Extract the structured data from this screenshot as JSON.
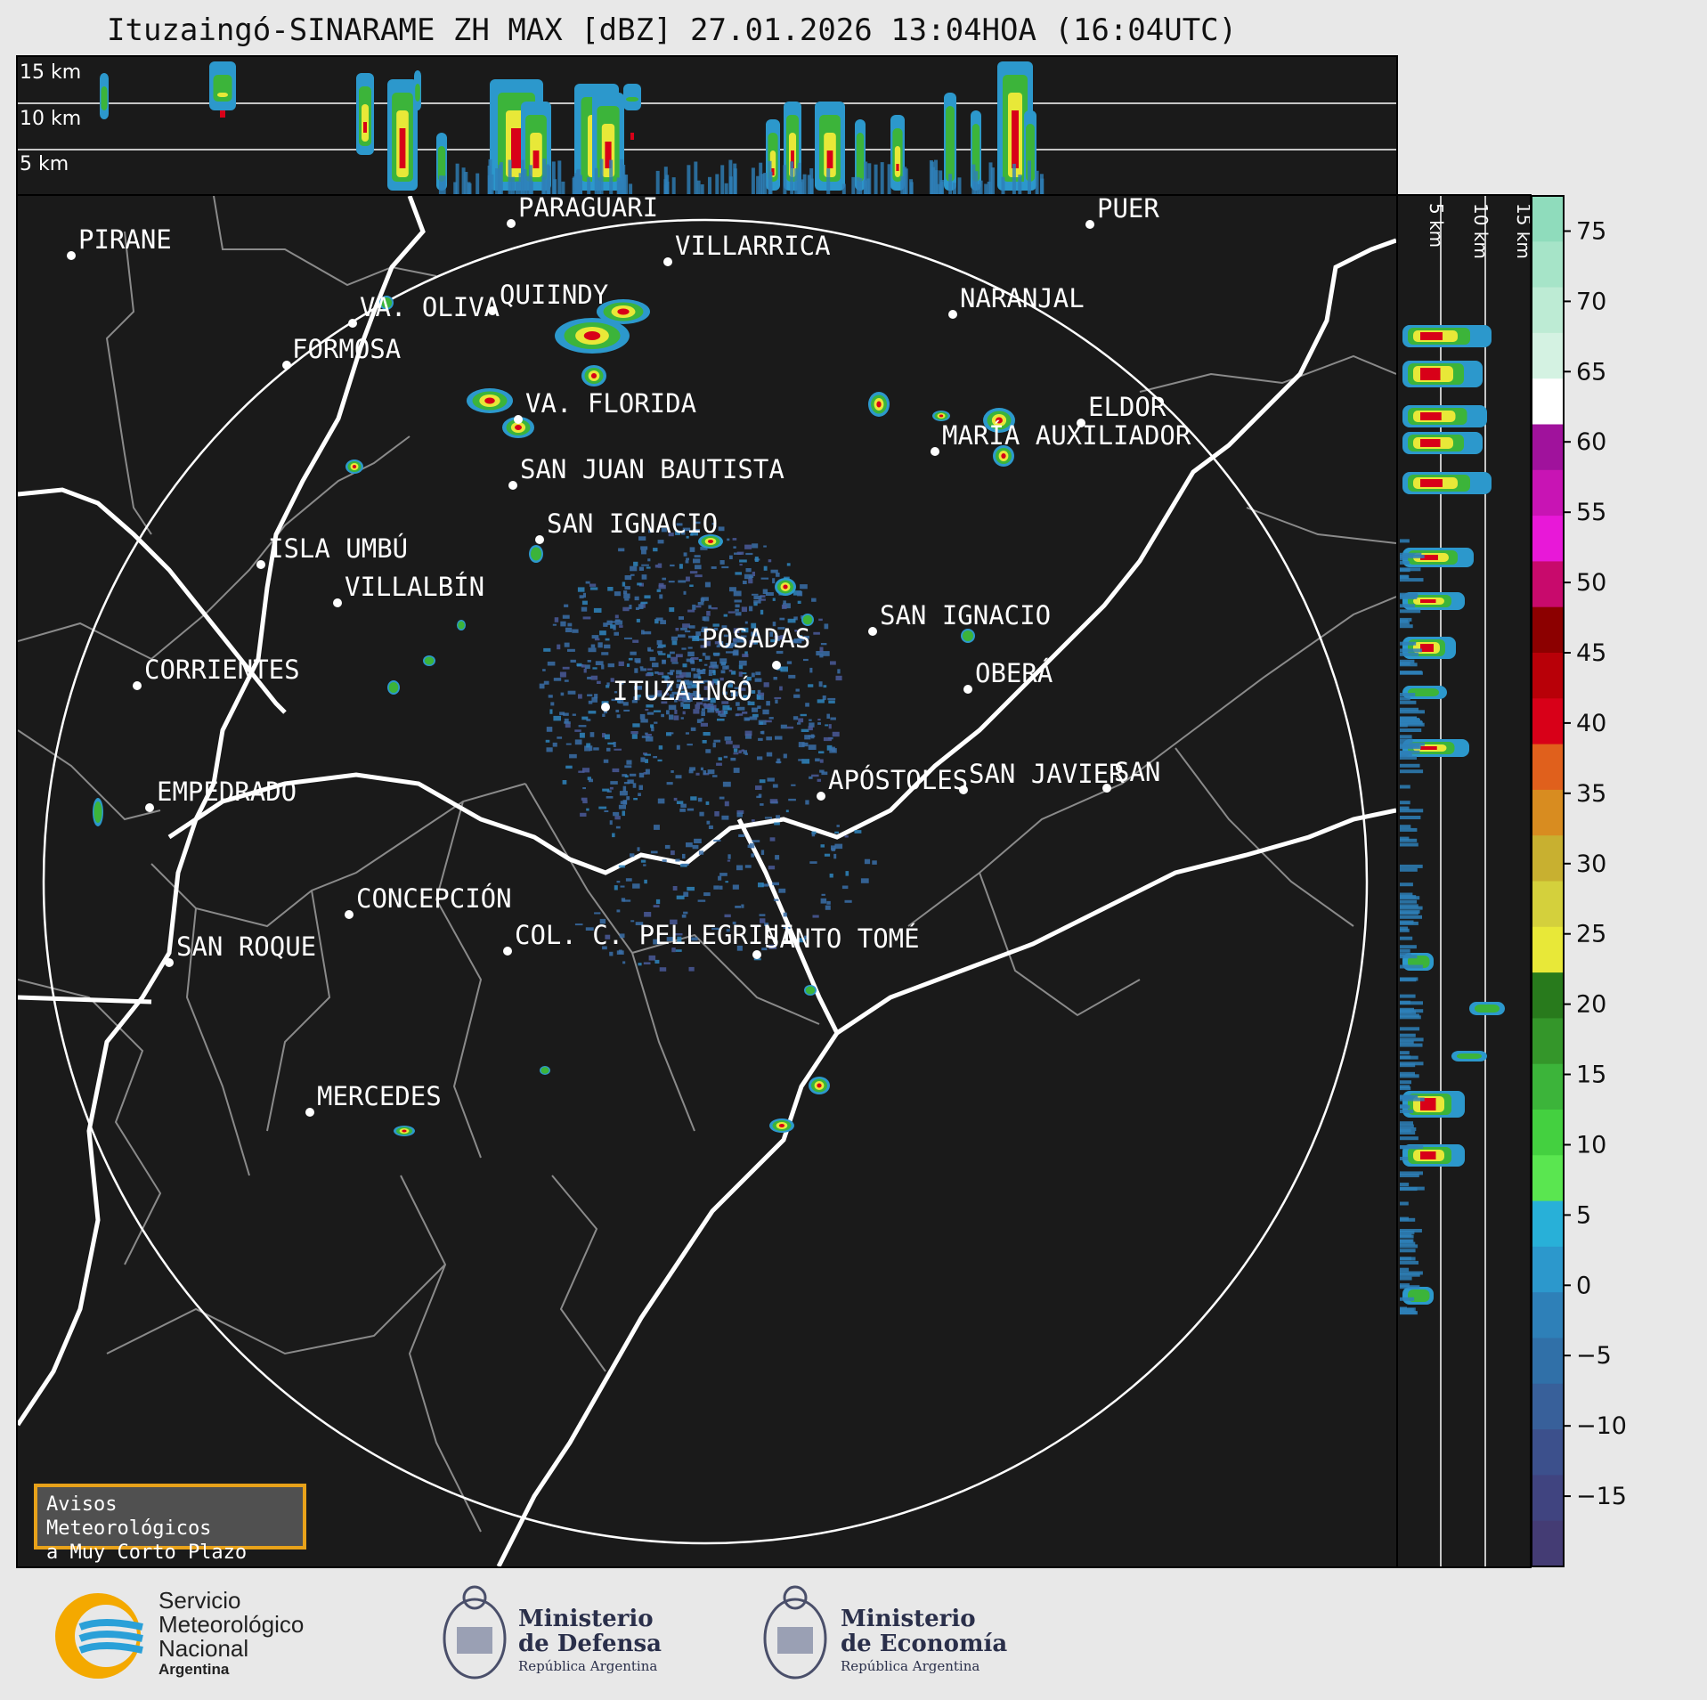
{
  "title": "Ituzaingó-SINARAME ZH MAX [dBZ] 27.01.2026 13:04HOA (16:04UTC)",
  "height_labels": [
    "15 km",
    "10 km",
    "5 km"
  ],
  "cities": [
    {
      "name": "PIRANE"
    },
    {
      "name": "PARAGUARÍ"
    },
    {
      "name": "VILLARRICA"
    },
    {
      "name": "VA. OLIVA"
    },
    {
      "name": "QUIINDY"
    },
    {
      "name": "NARANJAL"
    },
    {
      "name": "FORMOSA"
    },
    {
      "name": "VA. FLORIDA"
    },
    {
      "name": "ELDOR"
    },
    {
      "name": "MARÍA AUXILIADOR"
    },
    {
      "name": "SAN JUAN BAUTISTA"
    },
    {
      "name": "SAN IGNACIO"
    },
    {
      "name": "ISLA UMBÚ"
    },
    {
      "name": "VILLALBÍN"
    },
    {
      "name": "SAN IGNACIO"
    },
    {
      "name": "POSADAS"
    },
    {
      "name": "CORRIENTES"
    },
    {
      "name": "ITUZAINGÓ"
    },
    {
      "name": "OBERÁ"
    },
    {
      "name": "EMPEDRADO"
    },
    {
      "name": "APÓSTOLES"
    },
    {
      "name": "SAN JAVIER"
    },
    {
      "name": "SAN"
    },
    {
      "name": "CONCEPCIÓN"
    },
    {
      "name": "COL. C. PELLEGRINI"
    },
    {
      "name": "SANTO TOMÉ"
    },
    {
      "name": "SAN ROQUE"
    },
    {
      "name": "MERCEDES"
    },
    {
      "name": "PUER"
    }
  ],
  "colorbar": {
    "unit": "dBZ",
    "ticks": [
      "75",
      "70",
      "65",
      "60",
      "55",
      "50",
      "45",
      "40",
      "35",
      "30",
      "25",
      "20",
      "15",
      "10",
      "5",
      "0",
      "−5",
      "−10",
      "−15"
    ],
    "colors": [
      "#8fdcbc",
      "#a6e4c8",
      "#bdebd4",
      "#d4f2e2",
      "#ffffff",
      "#a0129c",
      "#c814b4",
      "#e818d8",
      "#c80a6c",
      "#8c0000",
      "#b80008",
      "#d80018",
      "#e0601c",
      "#d88c20",
      "#c8b030",
      "#d4d03c",
      "#e8e838",
      "#287a1c",
      "#34962a",
      "#3cb43a",
      "#44d040",
      "#5ae650",
      "#28b0d8",
      "#2c98cc",
      "#2e80b8",
      "#3070a8",
      "#38609a",
      "#3c508c",
      "#404480",
      "#443c74"
    ]
  },
  "alert_box": {
    "line1": "Avisos Meteorológicos",
    "line2": "a Muy Corto Plazo"
  },
  "logos": {
    "smn": {
      "line1": "Servicio",
      "line2": "Meteorológico",
      "line3": "Nacional",
      "line4": "Argentina"
    },
    "defensa": {
      "line1": "Ministerio",
      "line2": "de Defensa",
      "line3": "República Argentina"
    },
    "economia": {
      "line1": "Ministerio",
      "line2": "de Economía",
      "line3": "República Argentina"
    }
  }
}
